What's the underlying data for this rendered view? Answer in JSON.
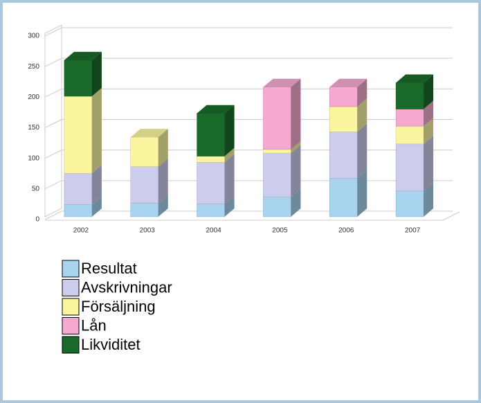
{
  "chart_data": {
    "type": "bar3d_stacked",
    "categories": [
      "2002",
      "2003",
      "2004",
      "2005",
      "2006",
      "2007"
    ],
    "series": [
      {
        "name": "Resultat",
        "color": "#a8d4f0",
        "values": [
          20,
          22,
          21,
          32,
          63,
          42
        ]
      },
      {
        "name": "Avskrivningar",
        "color": "#ccccec",
        "values": [
          51,
          60,
          68,
          72,
          76,
          77
        ]
      },
      {
        "name": "Försäljning",
        "color": "#fbf5a0",
        "values": [
          126,
          48,
          10,
          6,
          41,
          29
        ]
      },
      {
        "name": "Lån",
        "color": "#f5a9d0",
        "values": [
          0,
          0,
          0,
          102,
          32,
          28
        ]
      },
      {
        "name": "Likviditet",
        "color": "#1a6a2a",
        "values": [
          59,
          0,
          70,
          0,
          0,
          43
        ]
      }
    ],
    "ylim": [
      0,
      300
    ],
    "yticks": [
      0,
      50,
      100,
      150,
      200,
      250,
      300
    ],
    "grid": true
  }
}
